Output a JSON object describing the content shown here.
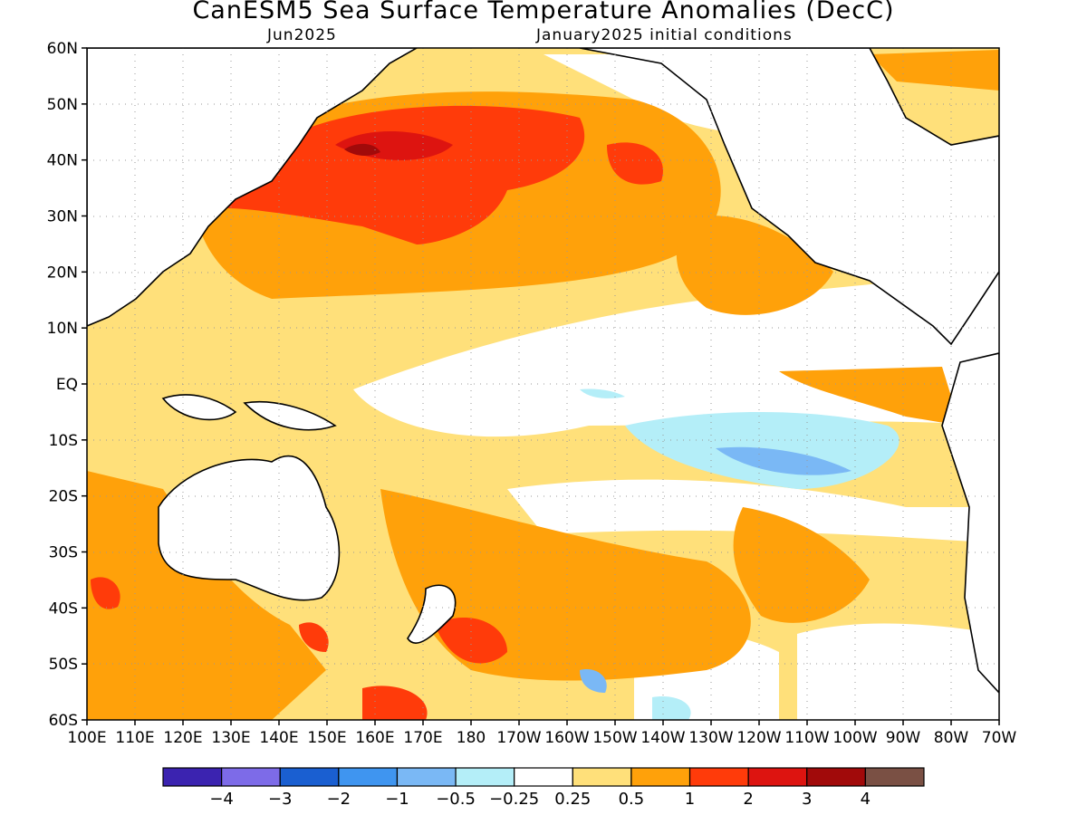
{
  "title": "CanESM5 Sea Surface Temperature Anomalies (DecC)",
  "subtitle_left": "Jun2025",
  "subtitle_right": "January2025 initial conditions",
  "lat_labels": [
    "60N",
    "50N",
    "40N",
    "30N",
    "20N",
    "10N",
    "EQ",
    "10S",
    "20S",
    "30S",
    "40S",
    "50S",
    "60S"
  ],
  "lon_labels": [
    "100E",
    "110E",
    "120E",
    "130E",
    "140E",
    "150E",
    "160E",
    "170E",
    "180",
    "170W",
    "160W",
    "150W",
    "140W",
    "130W",
    "120W",
    "110W",
    "100W",
    "90W",
    "80W",
    "70W"
  ],
  "colorbar": {
    "colors": [
      "#3b23b0",
      "#7d6be8",
      "#1a5fd1",
      "#3f95f0",
      "#7ab8f5",
      "#b4eef8",
      "#ffffff",
      "#ffe07a",
      "#ffa10a",
      "#ff3b0a",
      "#dd1410",
      "#a10a0a",
      "#7a5044"
    ],
    "labels": [
      "−4",
      "−3",
      "−2",
      "−1",
      "−0.5",
      "−0.25",
      "0.25",
      "0.5",
      "1",
      "2",
      "3",
      "4"
    ]
  },
  "map": {
    "lon_range": [
      100,
      290
    ],
    "lat_range": [
      -60,
      60
    ],
    "grid": "dotted"
  }
}
